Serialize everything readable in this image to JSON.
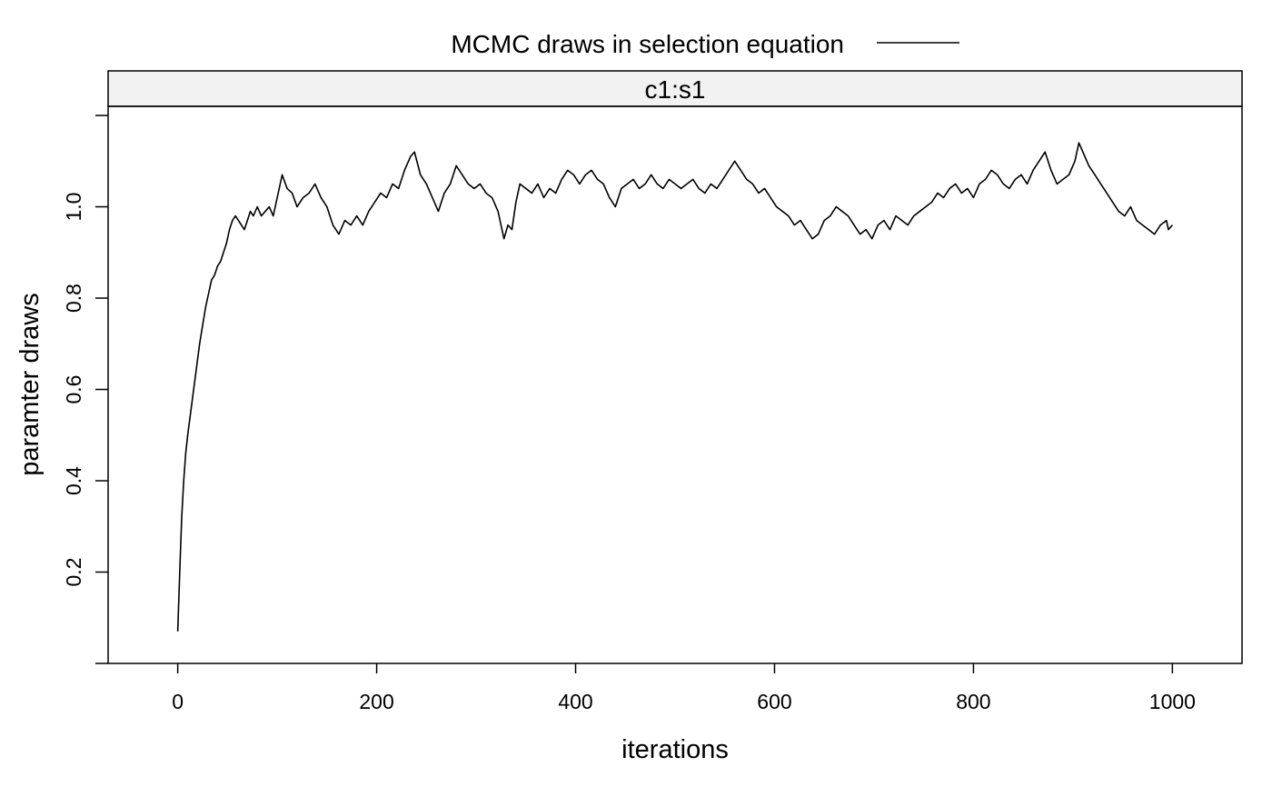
{
  "chart_data": {
    "type": "line",
    "legend": {
      "label": "MCMC draws in selection equation",
      "placement": "top"
    },
    "panel": {
      "strip_label": "c1:s1",
      "strip_color": "#f2f2f2"
    },
    "xlabel": "iterations",
    "ylabel": "paramter draws",
    "xlim": [
      -70,
      1070
    ],
    "ylim": [
      0.0,
      1.22
    ],
    "xticks": [
      0,
      200,
      400,
      600,
      800,
      1000
    ],
    "xtick_labels": [
      "0",
      "200",
      "400",
      "600",
      "800",
      "1000"
    ],
    "yticks": [
      0.2,
      0.4,
      0.6,
      0.8,
      1.0
    ],
    "ytick_labels": [
      "0.2",
      "0.4",
      "0.6",
      "0.8",
      "1.0"
    ],
    "y_extra_ticks": [
      0.0,
      1.2
    ],
    "grid": false,
    "series": [
      {
        "color": "#000000",
        "points": [
          [
            0,
            0.07
          ],
          [
            2,
            0.2
          ],
          [
            4,
            0.32
          ],
          [
            6,
            0.4
          ],
          [
            8,
            0.46
          ],
          [
            10,
            0.5
          ],
          [
            13,
            0.55
          ],
          [
            16,
            0.6
          ],
          [
            19,
            0.65
          ],
          [
            22,
            0.7
          ],
          [
            25,
            0.74
          ],
          [
            28,
            0.78
          ],
          [
            31,
            0.81
          ],
          [
            34,
            0.84
          ],
          [
            37,
            0.85
          ],
          [
            40,
            0.87
          ],
          [
            43,
            0.88
          ],
          [
            46,
            0.9
          ],
          [
            49,
            0.92
          ],
          [
            52,
            0.95
          ],
          [
            55,
            0.97
          ],
          [
            58,
            0.98
          ],
          [
            61,
            0.97
          ],
          [
            64,
            0.96
          ],
          [
            67,
            0.95
          ],
          [
            70,
            0.97
          ],
          [
            73,
            0.99
          ],
          [
            76,
            0.98
          ],
          [
            80,
            1.0
          ],
          [
            84,
            0.98
          ],
          [
            88,
            0.99
          ],
          [
            92,
            1.0
          ],
          [
            96,
            0.98
          ],
          [
            100,
            1.02
          ],
          [
            105,
            1.07
          ],
          [
            110,
            1.04
          ],
          [
            115,
            1.03
          ],
          [
            120,
            1.0
          ],
          [
            126,
            1.02
          ],
          [
            132,
            1.03
          ],
          [
            138,
            1.05
          ],
          [
            144,
            1.02
          ],
          [
            150,
            1.0
          ],
          [
            156,
            0.96
          ],
          [
            162,
            0.94
          ],
          [
            168,
            0.97
          ],
          [
            174,
            0.96
          ],
          [
            180,
            0.98
          ],
          [
            186,
            0.96
          ],
          [
            192,
            0.99
          ],
          [
            198,
            1.01
          ],
          [
            204,
            1.03
          ],
          [
            210,
            1.02
          ],
          [
            216,
            1.05
          ],
          [
            222,
            1.04
          ],
          [
            228,
            1.08
          ],
          [
            234,
            1.11
          ],
          [
            238,
            1.12
          ],
          [
            244,
            1.07
          ],
          [
            250,
            1.05
          ],
          [
            256,
            1.02
          ],
          [
            262,
            0.99
          ],
          [
            268,
            1.03
          ],
          [
            274,
            1.05
          ],
          [
            280,
            1.09
          ],
          [
            286,
            1.07
          ],
          [
            292,
            1.05
          ],
          [
            298,
            1.04
          ],
          [
            304,
            1.05
          ],
          [
            310,
            1.03
          ],
          [
            316,
            1.02
          ],
          [
            322,
            0.99
          ],
          [
            328,
            0.93
          ],
          [
            332,
            0.96
          ],
          [
            336,
            0.95
          ],
          [
            340,
            1.01
          ],
          [
            344,
            1.05
          ],
          [
            350,
            1.04
          ],
          [
            356,
            1.03
          ],
          [
            362,
            1.05
          ],
          [
            368,
            1.02
          ],
          [
            374,
            1.04
          ],
          [
            380,
            1.03
          ],
          [
            386,
            1.06
          ],
          [
            392,
            1.08
          ],
          [
            398,
            1.07
          ],
          [
            404,
            1.05
          ],
          [
            410,
            1.07
          ],
          [
            416,
            1.08
          ],
          [
            422,
            1.06
          ],
          [
            428,
            1.05
          ],
          [
            434,
            1.02
          ],
          [
            440,
            1.0
          ],
          [
            446,
            1.04
          ],
          [
            452,
            1.05
          ],
          [
            458,
            1.06
          ],
          [
            464,
            1.04
          ],
          [
            470,
            1.05
          ],
          [
            476,
            1.07
          ],
          [
            482,
            1.05
          ],
          [
            488,
            1.04
          ],
          [
            494,
            1.06
          ],
          [
            500,
            1.05
          ],
          [
            506,
            1.04
          ],
          [
            512,
            1.05
          ],
          [
            518,
            1.06
          ],
          [
            524,
            1.04
          ],
          [
            530,
            1.03
          ],
          [
            536,
            1.05
          ],
          [
            542,
            1.04
          ],
          [
            548,
            1.06
          ],
          [
            554,
            1.08
          ],
          [
            560,
            1.1
          ],
          [
            566,
            1.08
          ],
          [
            572,
            1.06
          ],
          [
            578,
            1.05
          ],
          [
            584,
            1.03
          ],
          [
            590,
            1.04
          ],
          [
            596,
            1.02
          ],
          [
            602,
            1.0
          ],
          [
            608,
            0.99
          ],
          [
            614,
            0.98
          ],
          [
            620,
            0.96
          ],
          [
            626,
            0.97
          ],
          [
            632,
            0.95
          ],
          [
            638,
            0.93
          ],
          [
            644,
            0.94
          ],
          [
            650,
            0.97
          ],
          [
            656,
            0.98
          ],
          [
            662,
            1.0
          ],
          [
            668,
            0.99
          ],
          [
            674,
            0.98
          ],
          [
            680,
            0.96
          ],
          [
            686,
            0.94
          ],
          [
            692,
            0.95
          ],
          [
            698,
            0.93
          ],
          [
            704,
            0.96
          ],
          [
            710,
            0.97
          ],
          [
            716,
            0.95
          ],
          [
            722,
            0.98
          ],
          [
            728,
            0.97
          ],
          [
            734,
            0.96
          ],
          [
            740,
            0.98
          ],
          [
            746,
            0.99
          ],
          [
            752,
            1.0
          ],
          [
            758,
            1.01
          ],
          [
            764,
            1.03
          ],
          [
            770,
            1.02
          ],
          [
            776,
            1.04
          ],
          [
            782,
            1.05
          ],
          [
            788,
            1.03
          ],
          [
            794,
            1.04
          ],
          [
            800,
            1.02
          ],
          [
            806,
            1.05
          ],
          [
            812,
            1.06
          ],
          [
            818,
            1.08
          ],
          [
            824,
            1.07
          ],
          [
            830,
            1.05
          ],
          [
            836,
            1.04
          ],
          [
            842,
            1.06
          ],
          [
            848,
            1.07
          ],
          [
            854,
            1.05
          ],
          [
            860,
            1.08
          ],
          [
            866,
            1.1
          ],
          [
            872,
            1.12
          ],
          [
            878,
            1.08
          ],
          [
            884,
            1.05
          ],
          [
            890,
            1.06
          ],
          [
            896,
            1.07
          ],
          [
            902,
            1.1
          ],
          [
            906,
            1.14
          ],
          [
            910,
            1.12
          ],
          [
            916,
            1.09
          ],
          [
            922,
            1.07
          ],
          [
            928,
            1.05
          ],
          [
            934,
            1.03
          ],
          [
            940,
            1.01
          ],
          [
            946,
            0.99
          ],
          [
            952,
            0.98
          ],
          [
            958,
            1.0
          ],
          [
            964,
            0.97
          ],
          [
            970,
            0.96
          ],
          [
            976,
            0.95
          ],
          [
            982,
            0.94
          ],
          [
            988,
            0.96
          ],
          [
            994,
            0.97
          ],
          [
            996,
            0.95
          ],
          [
            1000,
            0.96
          ]
        ]
      }
    ]
  }
}
